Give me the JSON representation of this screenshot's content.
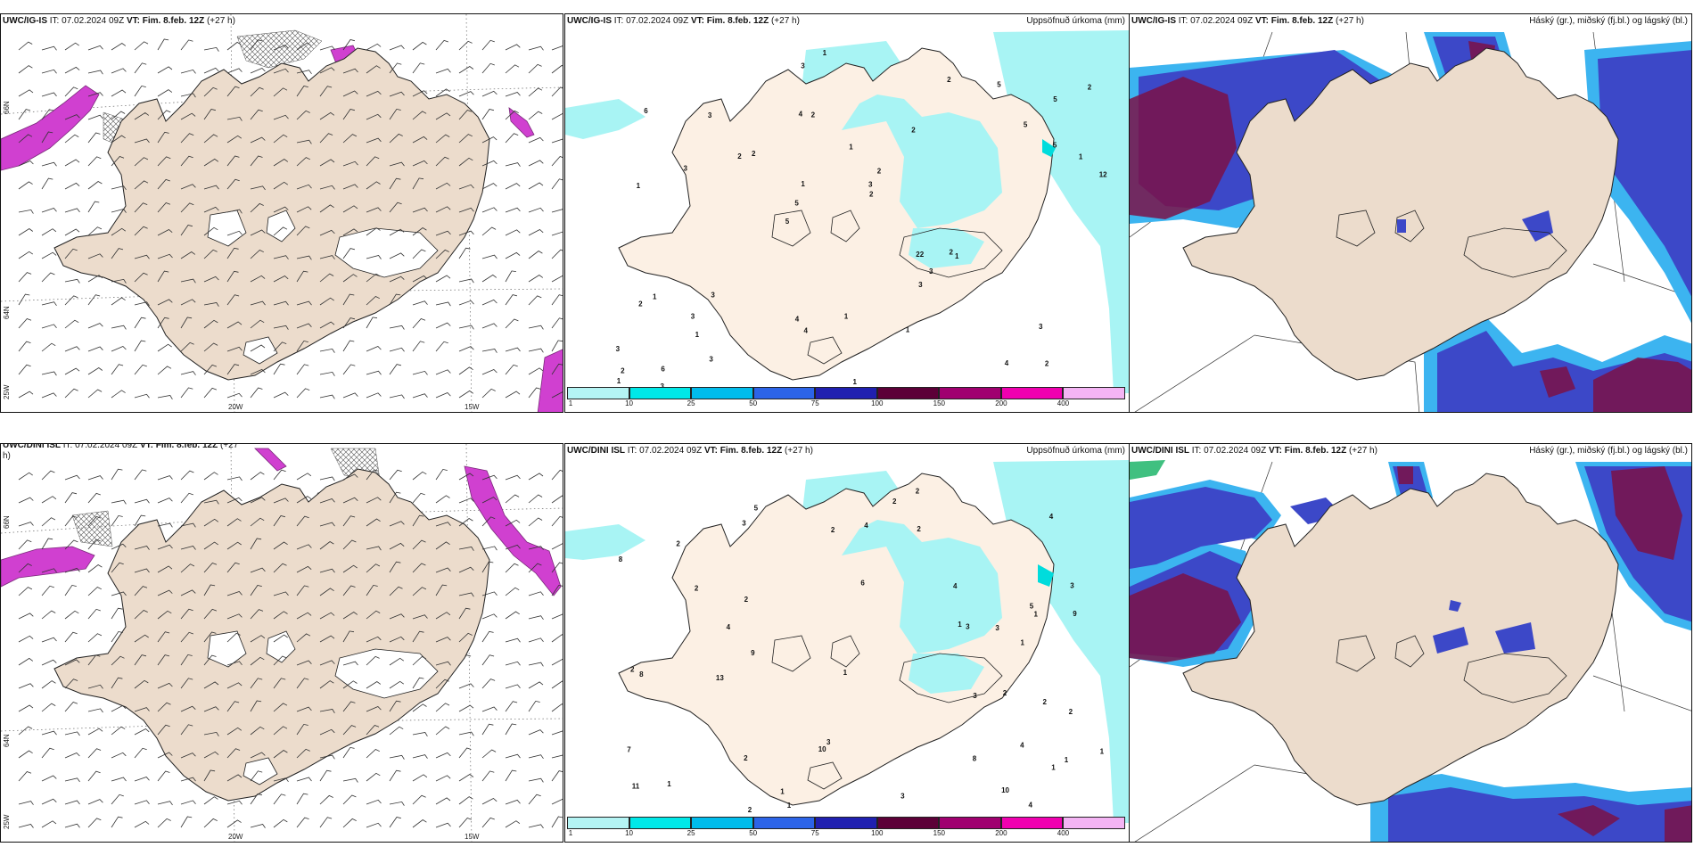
{
  "panels": [
    {
      "id": "wind-igis",
      "header_model": "UWC/IG-IS",
      "header_it": " IT: 07.02.2024 09Z ",
      "header_vt": "VT: Fim. 8.feb. 12Z",
      "header_lead": " (+27 h)",
      "right_title": ""
    },
    {
      "id": "precip-igis",
      "header_model": "UWC/IG-IS",
      "header_it": " IT: 07.02.2024 09Z ",
      "header_vt": "VT: Fim. 8.feb. 12Z",
      "header_lead": " (+27 h)",
      "right_title": "Uppsöfnuð úrkoma (mm)"
    },
    {
      "id": "cloud-igis",
      "header_model": "UWC/IG-IS",
      "header_it": " IT: 07.02.2024 09Z ",
      "header_vt": "VT: Fim. 8.feb. 12Z",
      "header_lead": " (+27 h)",
      "right_title": "Háský (gr.), miðský (fj.bl.) og lágský (bl.)"
    },
    {
      "id": "wind-dini",
      "header_model": "UWC/DINI ISL",
      "header_it": " IT: 07.02.2024 09Z ",
      "header_vt": "VT: Fim. 8.feb. 12Z",
      "header_lead": " (+27",
      "right_title": ""
    },
    {
      "id": "precip-dini",
      "header_model": "UWC/DINI ISL",
      "header_it": " IT: 07.02.2024 09Z ",
      "header_vt": "VT: Fim. 8.feb. 12Z",
      "header_lead": " (+27 h)",
      "right_title": "Uppsöfnuð úrkoma (mm)"
    },
    {
      "id": "cloud-dini",
      "header_model": "UWC/DINI ISL",
      "header_it": " IT: 07.02.2024 09Z ",
      "header_vt": "VT: Fim. 8.feb. 12Z",
      "header_lead": " (+27 h)",
      "right_title": "Háský (gr.), miðský (fj.bl.) og lágský (bl.)"
    }
  ],
  "wind_labels": {
    "lon_20w": "20W",
    "lon_15w": "15W",
    "lon_25w": "25W",
    "lat_66n": "66N",
    "lat_64n": "64N",
    "lat_66n_b": "66N",
    "lat_64n_b": "64N",
    "h_cont": "h)"
  },
  "colorbar": {
    "labels": [
      "1",
      "10",
      "25",
      "50",
      "75",
      "100",
      "150",
      "200",
      "400"
    ],
    "colors": [
      "#b4f4f4",
      "#00e8e8",
      "#00bcec",
      "#2c64e8",
      "#2020b0",
      "#5c0038",
      "#a00070",
      "#f000b0",
      "#f4b4f4"
    ]
  },
  "precip_numbers_igis": [
    "2",
    "1",
    "5",
    "5",
    "2",
    "6",
    "4",
    "1",
    "1",
    "2",
    "3",
    "1",
    "2",
    "2",
    "1",
    "6",
    "3",
    "12",
    "22",
    "5",
    "5",
    "4",
    "1",
    "3",
    "2",
    "3",
    "4",
    "3",
    "2",
    "1",
    "2",
    "3",
    "3",
    "3",
    "1",
    "3",
    "2",
    "4",
    "2",
    "2",
    "5",
    "2",
    "3",
    "1",
    "3",
    "3",
    "1",
    "1",
    "5",
    "1"
  ],
  "precip_numbers_dini": [
    "4",
    "3",
    "1",
    "6",
    "11",
    "5",
    "5",
    "2",
    "4",
    "2",
    "9",
    "8",
    "1",
    "1",
    "7",
    "2",
    "1",
    "3",
    "3",
    "1",
    "2",
    "8",
    "3",
    "1",
    "1",
    "10",
    "2",
    "2",
    "4",
    "1",
    "13",
    "8",
    "2",
    "1",
    "2",
    "10",
    "3",
    "2",
    "4",
    "9",
    "2",
    "3",
    "4",
    "4",
    "2",
    "3",
    "1",
    "2",
    "2"
  ],
  "colors": {
    "land": "#ecdccc",
    "land_light": "#fcf0e4",
    "precip_light": "#a8f4f4",
    "precip_mid": "#00dcdc",
    "wind_magenta": "#d040d0",
    "cloud_high": "#7a1248",
    "cloud_mid": "#3c48c8",
    "cloud_low": "#3cb4f0"
  }
}
